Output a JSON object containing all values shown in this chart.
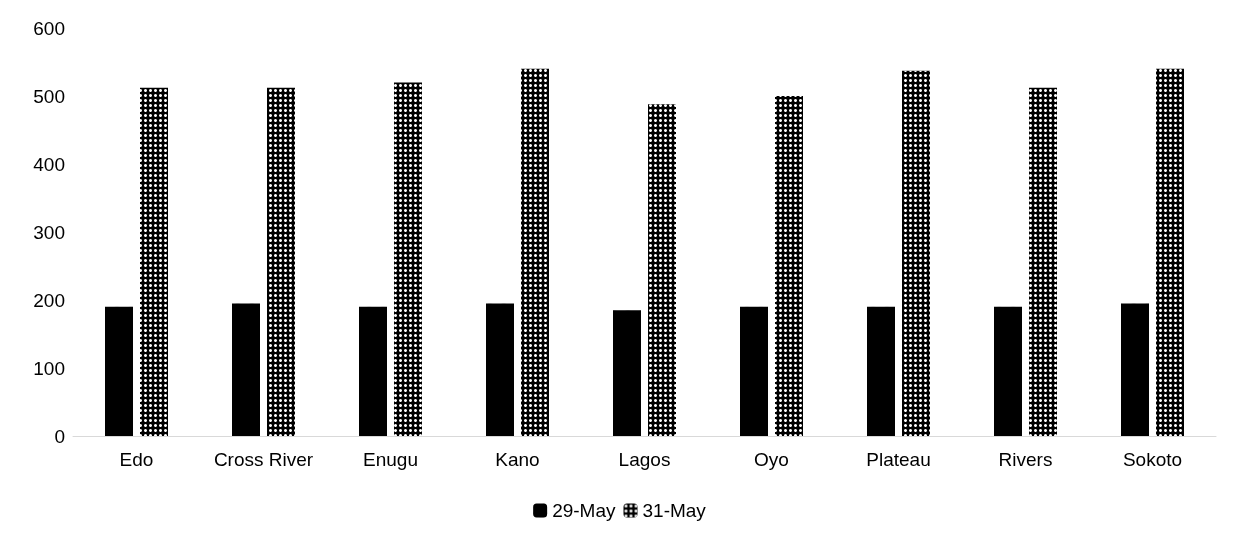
{
  "chart_data": {
    "type": "bar",
    "categories": [
      "Edo",
      "Cross River",
      "Enugu",
      "Kano",
      "Lagos",
      "Oyo",
      "Plateau",
      "Rivers",
      "Sokoto"
    ],
    "series": [
      {
        "name": "29-May",
        "color": "#000000",
        "values": [
          190,
          195,
          190,
          195,
          185,
          190,
          190,
          190,
          195
        ]
      },
      {
        "name": "31-May",
        "color": "#000000",
        "values": [
          512,
          512,
          520,
          540,
          488,
          500,
          537,
          512,
          540
        ]
      }
    ],
    "ylim": [
      0,
      600
    ],
    "yticks": [
      0,
      100,
      200,
      300,
      400,
      500,
      600
    ],
    "grid": false,
    "legend": "bottom"
  }
}
